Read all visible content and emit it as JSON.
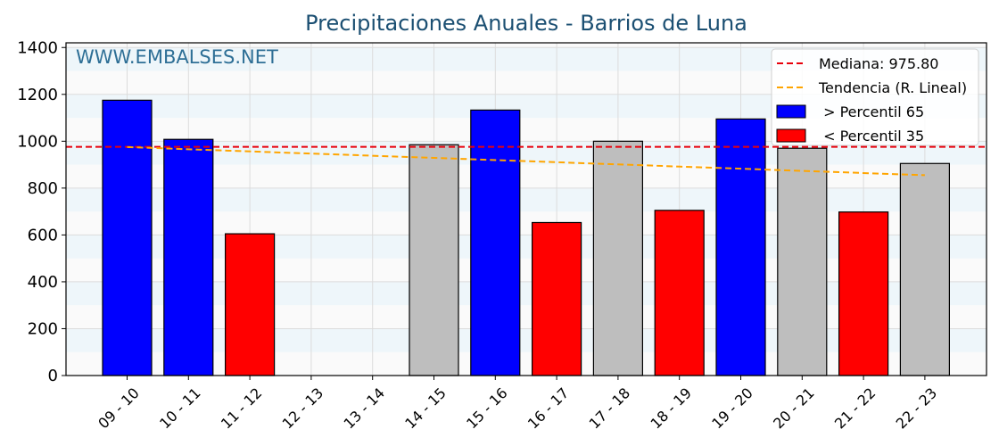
{
  "chart_data": {
    "type": "bar",
    "title": "Precipitaciones Anuales - Barrios de Luna",
    "watermark": "WWW.EMBALSES.NET",
    "xlabel": "",
    "ylabel": "",
    "ylim": [
      0,
      1420
    ],
    "yticks": [
      0,
      200,
      400,
      600,
      800,
      1000,
      1200,
      1400
    ],
    "grid": true,
    "legend_position": "top-right",
    "categories": [
      "09 - 10",
      "10 - 11",
      "11 - 12",
      "12 - 13",
      "13 - 14",
      "14 - 15",
      "15 - 16",
      "16 - 17",
      "17 - 18",
      "18 - 19",
      "19 - 20",
      "20 - 21",
      "21 - 22",
      "22 - 23"
    ],
    "values": [
      1175,
      1008,
      605,
      null,
      null,
      985,
      1133,
      653,
      1000,
      705,
      1095,
      970,
      698,
      905
    ],
    "bar_classes": [
      "high",
      "high",
      "low",
      null,
      null,
      "mid",
      "high",
      "low",
      "mid",
      "low",
      "high",
      "mid",
      "low",
      "mid"
    ],
    "colors": {
      "high": "#0000ff",
      "low": "#ff0000",
      "mid": "#bebebe",
      "median": "#e8000b",
      "trend": "#ffa500"
    },
    "median": {
      "label": "Mediana: 975.80",
      "value": 975.8
    },
    "trend": {
      "label": "Tendencia (R. Lineal)",
      "start": 975,
      "end": 855
    },
    "legend": [
      {
        "key": "median",
        "label": "Mediana: 975.80"
      },
      {
        "key": "trend",
        "label": "Tendencia (R. Lineal)"
      },
      {
        "key": "high",
        "label": " > Percentil 65"
      },
      {
        "key": "low",
        "label": " < Percentil 35"
      }
    ]
  }
}
